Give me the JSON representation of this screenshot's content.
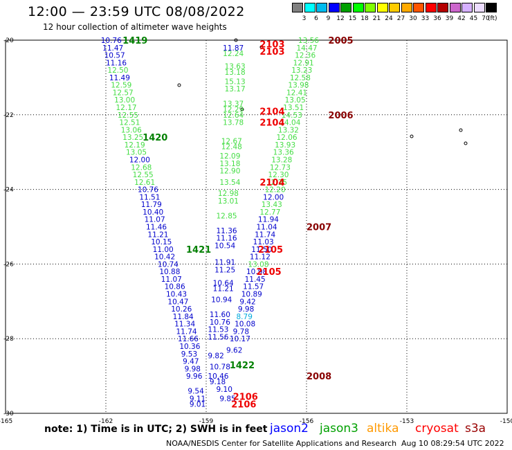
{
  "header": {
    "title": "12:00 — 23:59 UTC 08/08/2022",
    "subtitle": "12 hour collection of altimeter wave heights"
  },
  "legend": {
    "colors": [
      "#808080",
      "#00ffff",
      "#00bbee",
      "#0000ff",
      "#00a000",
      "#00ff00",
      "#80ff00",
      "#ffff00",
      "#ffcc00",
      "#ffaa00",
      "#ff5500",
      "#ff0000",
      "#b40000",
      "#cc66cc",
      "#d5b0ff",
      "#ecdcff",
      "#000000"
    ],
    "labels": [
      "3",
      "6",
      "9",
      "12",
      "15",
      "18",
      "21",
      "24",
      "27",
      "30",
      "33",
      "36",
      "39",
      "42",
      "45",
      "70"
    ],
    "unit": "(ft)"
  },
  "chart_data": {
    "type": "scatter",
    "xlim": [
      -165,
      -150
    ],
    "ylim": [
      -30,
      -20
    ],
    "x_ticks": [
      "-165",
      "-162",
      "-159",
      "-156",
      "-153",
      "-150"
    ],
    "y_ticks": [
      "-20",
      "-22",
      "-24",
      "-26",
      "-28",
      "-30"
    ],
    "grid": true,
    "tracks": [
      {
        "x": -162.15,
        "y": -20.0,
        "label": "10.76",
        "color": "#0000cc"
      },
      {
        "x": -162.1,
        "y": -20.2,
        "label": "11.47",
        "color": "#0000cc"
      },
      {
        "x": -162.05,
        "y": -20.4,
        "label": "10.57",
        "color": "#0000cc"
      },
      {
        "x": -162.0,
        "y": -20.6,
        "label": "11.16",
        "color": "#0000cc"
      },
      {
        "x": -161.95,
        "y": -20.8,
        "label": "12.50",
        "color": "#44dd44"
      },
      {
        "x": -161.9,
        "y": -21.0,
        "label": "11.49",
        "color": "#0000cc"
      },
      {
        "x": -161.85,
        "y": -21.2,
        "label": "12.59",
        "color": "#44dd44"
      },
      {
        "x": -161.8,
        "y": -21.4,
        "label": "12.57",
        "color": "#44dd44"
      },
      {
        "x": -161.75,
        "y": -21.6,
        "label": "13.00",
        "color": "#44dd44"
      },
      {
        "x": -161.7,
        "y": -21.8,
        "label": "12.17",
        "color": "#44dd44"
      },
      {
        "x": -161.65,
        "y": -22.0,
        "label": "12.55",
        "color": "#44dd44"
      },
      {
        "x": -161.6,
        "y": -22.2,
        "label": "12.51",
        "color": "#44dd44"
      },
      {
        "x": -161.55,
        "y": -22.4,
        "label": "13.06",
        "color": "#44dd44"
      },
      {
        "x": -161.5,
        "y": -22.6,
        "label": "13.25",
        "color": "#44dd44"
      },
      {
        "x": -161.45,
        "y": -22.8,
        "label": "12.19",
        "color": "#44dd44"
      },
      {
        "x": -161.4,
        "y": -23.0,
        "label": "13.05",
        "color": "#44dd44"
      },
      {
        "x": -161.3,
        "y": -23.2,
        "label": "12.00",
        "color": "#0000cc"
      },
      {
        "x": -161.25,
        "y": -23.4,
        "label": "12.68",
        "color": "#44dd44"
      },
      {
        "x": -161.2,
        "y": -23.6,
        "label": "12.55",
        "color": "#44dd44"
      },
      {
        "x": -161.15,
        "y": -23.8,
        "label": "12.61",
        "color": "#44dd44"
      },
      {
        "x": -161.05,
        "y": -24.0,
        "label": "10.76",
        "color": "#0000cc"
      },
      {
        "x": -161.0,
        "y": -24.2,
        "label": "11.51",
        "color": "#0000cc"
      },
      {
        "x": -160.95,
        "y": -24.4,
        "label": "11.79",
        "color": "#0000cc"
      },
      {
        "x": -160.9,
        "y": -24.6,
        "label": "10.40",
        "color": "#0000cc"
      },
      {
        "x": -160.85,
        "y": -24.8,
        "label": "11.07",
        "color": "#0000cc"
      },
      {
        "x": -160.8,
        "y": -25.0,
        "label": "11.46",
        "color": "#0000cc"
      },
      {
        "x": -160.75,
        "y": -25.2,
        "label": "11.21",
        "color": "#0000cc"
      },
      {
        "x": -160.65,
        "y": -25.4,
        "label": "10.15",
        "color": "#0000cc"
      },
      {
        "x": -160.6,
        "y": -25.6,
        "label": "11.00",
        "color": "#0000cc"
      },
      {
        "x": -160.55,
        "y": -25.8,
        "label": "10.42",
        "color": "#0000cc"
      },
      {
        "x": -160.45,
        "y": -26.0,
        "label": "10.74",
        "color": "#0000cc"
      },
      {
        "x": -160.4,
        "y": -26.2,
        "label": "10.88",
        "color": "#0000cc"
      },
      {
        "x": -160.35,
        "y": -26.4,
        "label": "11.07",
        "color": "#0000cc"
      },
      {
        "x": -160.25,
        "y": -26.6,
        "label": "10.86",
        "color": "#0000cc"
      },
      {
        "x": -160.2,
        "y": -26.8,
        "label": "10.43",
        "color": "#0000cc"
      },
      {
        "x": -160.15,
        "y": -27.0,
        "label": "10.47",
        "color": "#0000cc"
      },
      {
        "x": -160.05,
        "y": -27.2,
        "label": "10.26",
        "color": "#0000cc"
      },
      {
        "x": -160.0,
        "y": -27.4,
        "label": "11.84",
        "color": "#0000cc"
      },
      {
        "x": -159.95,
        "y": -27.6,
        "label": "11.34",
        "color": "#0000cc"
      },
      {
        "x": -159.9,
        "y": -27.8,
        "label": "11.74",
        "color": "#0000cc"
      },
      {
        "x": -159.85,
        "y": -28.0,
        "label": "11.66",
        "color": "#0000cc"
      },
      {
        "x": -159.8,
        "y": -28.2,
        "label": "10.36",
        "color": "#0000cc"
      },
      {
        "x": -159.75,
        "y": -28.4,
        "label": "9.53",
        "color": "#0000cc"
      },
      {
        "x": -159.7,
        "y": -28.6,
        "label": "9.47",
        "color": "#0000cc"
      },
      {
        "x": -159.65,
        "y": -28.8,
        "label": "9.98",
        "color": "#0000cc"
      },
      {
        "x": -159.6,
        "y": -29.0,
        "label": "9.96",
        "color": "#0000cc"
      },
      {
        "x": -159.55,
        "y": -29.4,
        "label": "9.54",
        "color": "#0000cc"
      },
      {
        "x": -159.5,
        "y": -29.6,
        "label": "9.11",
        "color": "#0000cc"
      },
      {
        "x": -159.5,
        "y": -29.75,
        "label": "9.01",
        "color": "#0000cc"
      },
      {
        "x": -158.5,
        "y": -20.2,
        "label": "11.87",
        "color": "#0000cc"
      },
      {
        "x": -158.5,
        "y": -20.35,
        "label": "12.24",
        "color": "#44dd44"
      },
      {
        "x": -158.45,
        "y": -20.7,
        "label": "13.63",
        "color": "#44dd44"
      },
      {
        "x": -158.45,
        "y": -20.85,
        "label": "13.18",
        "color": "#44dd44"
      },
      {
        "x": -158.45,
        "y": -21.1,
        "label": "15.13",
        "color": "#44dd44"
      },
      {
        "x": -158.45,
        "y": -21.3,
        "label": "13.17",
        "color": "#44dd44"
      },
      {
        "x": -158.5,
        "y": -21.7,
        "label": "13.37",
        "color": "#44dd44"
      },
      {
        "x": -158.5,
        "y": -21.85,
        "label": "12.29",
        "color": "#44dd44"
      },
      {
        "x": -158.5,
        "y": -22.0,
        "label": "12.64",
        "color": "#44dd44"
      },
      {
        "x": -158.5,
        "y": -22.2,
        "label": "13.78",
        "color": "#44dd44"
      },
      {
        "x": -158.55,
        "y": -22.7,
        "label": "12.67",
        "color": "#44dd44"
      },
      {
        "x": -158.55,
        "y": -22.85,
        "label": "12.48",
        "color": "#44dd44"
      },
      {
        "x": -158.6,
        "y": -23.1,
        "label": "12.09",
        "color": "#44dd44"
      },
      {
        "x": -158.6,
        "y": -23.3,
        "label": "13.18",
        "color": "#44dd44"
      },
      {
        "x": -158.6,
        "y": -23.5,
        "label": "12.90",
        "color": "#44dd44"
      },
      {
        "x": -158.6,
        "y": -23.8,
        "label": "13.54",
        "color": "#44dd44"
      },
      {
        "x": -158.65,
        "y": -24.1,
        "label": "12.98",
        "color": "#44dd44"
      },
      {
        "x": -158.65,
        "y": -24.3,
        "label": "13.01",
        "color": "#44dd44"
      },
      {
        "x": -158.7,
        "y": -24.7,
        "label": "12.85",
        "color": "#44dd44"
      },
      {
        "x": -158.7,
        "y": -25.1,
        "label": "11.36",
        "color": "#0000cc"
      },
      {
        "x": -158.7,
        "y": -25.3,
        "label": "11.16",
        "color": "#0000cc"
      },
      {
        "x": -158.75,
        "y": -25.5,
        "label": "10.54",
        "color": "#0000cc"
      },
      {
        "x": -158.75,
        "y": -25.95,
        "label": "11.91",
        "color": "#0000cc"
      },
      {
        "x": -158.75,
        "y": -26.15,
        "label": "11.25",
        "color": "#0000cc"
      },
      {
        "x": -158.8,
        "y": -26.5,
        "label": "10.64",
        "color": "#0000cc"
      },
      {
        "x": -158.8,
        "y": -26.65,
        "label": "11.21",
        "color": "#0000cc"
      },
      {
        "x": -158.85,
        "y": -26.95,
        "label": "10.94",
        "color": "#0000cc"
      },
      {
        "x": -158.9,
        "y": -27.35,
        "label": "11.60",
        "color": "#0000cc"
      },
      {
        "x": -158.9,
        "y": -27.55,
        "label": "10.76",
        "color": "#0000cc"
      },
      {
        "x": -158.95,
        "y": -27.75,
        "label": "11.53",
        "color": "#0000cc"
      },
      {
        "x": -158.95,
        "y": -27.95,
        "label": "11.56",
        "color": "#0000cc"
      },
      {
        "x": -158.95,
        "y": -28.45,
        "label": "9.82",
        "color": "#0000cc"
      },
      {
        "x": -158.9,
        "y": -28.75,
        "label": "10.78",
        "color": "#0000cc"
      },
      {
        "x": -158.95,
        "y": -29.0,
        "label": "10.46",
        "color": "#0000cc"
      },
      {
        "x": -158.9,
        "y": -29.15,
        "label": "9.18",
        "color": "#0000cc"
      },
      {
        "x": -158.7,
        "y": -29.35,
        "label": "9.10",
        "color": "#0000cc"
      },
      {
        "x": -158.6,
        "y": -29.6,
        "label": "9.85",
        "color": "#0000cc"
      },
      {
        "x": -156.25,
        "y": -20.0,
        "label": "13.56",
        "color": "#44dd44"
      },
      {
        "x": -156.3,
        "y": -20.2,
        "label": "14.47",
        "color": "#44dd44"
      },
      {
        "x": -156.35,
        "y": -20.4,
        "label": "12.36",
        "color": "#44dd44"
      },
      {
        "x": -156.4,
        "y": -20.6,
        "label": "12.91",
        "color": "#44dd44"
      },
      {
        "x": -156.45,
        "y": -20.8,
        "label": "13.23",
        "color": "#44dd44"
      },
      {
        "x": -156.5,
        "y": -21.0,
        "label": "12.58",
        "color": "#44dd44"
      },
      {
        "x": -156.55,
        "y": -21.2,
        "label": "13.98",
        "color": "#44dd44"
      },
      {
        "x": -156.6,
        "y": -21.4,
        "label": "12.41",
        "color": "#44dd44"
      },
      {
        "x": -156.65,
        "y": -21.6,
        "label": "13.05",
        "color": "#44dd44"
      },
      {
        "x": -156.7,
        "y": -21.8,
        "label": "13.51",
        "color": "#44dd44"
      },
      {
        "x": -156.75,
        "y": -22.0,
        "label": "14.53",
        "color": "#44dd44"
      },
      {
        "x": -156.8,
        "y": -22.2,
        "label": "14.04",
        "color": "#44dd44"
      },
      {
        "x": -156.85,
        "y": -22.4,
        "label": "13.32",
        "color": "#44dd44"
      },
      {
        "x": -156.9,
        "y": -22.6,
        "label": "12.06",
        "color": "#44dd44"
      },
      {
        "x": -156.95,
        "y": -22.8,
        "label": "13.93",
        "color": "#44dd44"
      },
      {
        "x": -157.0,
        "y": -23.0,
        "label": "13.36",
        "color": "#44dd44"
      },
      {
        "x": -157.05,
        "y": -23.2,
        "label": "13.28",
        "color": "#44dd44"
      },
      {
        "x": -157.1,
        "y": -23.4,
        "label": "12.73",
        "color": "#44dd44"
      },
      {
        "x": -157.15,
        "y": -23.6,
        "label": "12.30",
        "color": "#44dd44"
      },
      {
        "x": -157.2,
        "y": -23.8,
        "label": "12.25",
        "color": "#44dd44"
      },
      {
        "x": -157.25,
        "y": -24.0,
        "label": "12.20",
        "color": "#44dd44"
      },
      {
        "x": -157.3,
        "y": -24.2,
        "label": "12.00",
        "color": "#0000cc"
      },
      {
        "x": -157.35,
        "y": -24.4,
        "label": "13.43",
        "color": "#44dd44"
      },
      {
        "x": -157.4,
        "y": -24.6,
        "label": "12.77",
        "color": "#44dd44"
      },
      {
        "x": -157.45,
        "y": -24.8,
        "label": "11.94",
        "color": "#0000cc"
      },
      {
        "x": -157.5,
        "y": -25.0,
        "label": "11.04",
        "color": "#0000cc"
      },
      {
        "x": -157.55,
        "y": -25.2,
        "label": "11.74",
        "color": "#0000cc"
      },
      {
        "x": -157.6,
        "y": -25.4,
        "label": "11.03",
        "color": "#0000cc"
      },
      {
        "x": -157.65,
        "y": -25.6,
        "label": "11.50",
        "color": "#0000cc"
      },
      {
        "x": -157.7,
        "y": -25.8,
        "label": "11.12",
        "color": "#0000cc"
      },
      {
        "x": -157.75,
        "y": -26.0,
        "label": "13.08",
        "color": "#44dd44"
      },
      {
        "x": -157.8,
        "y": -26.2,
        "label": "10.98",
        "color": "#0000cc"
      },
      {
        "x": -157.85,
        "y": -26.4,
        "label": "11.45",
        "color": "#0000cc"
      },
      {
        "x": -157.9,
        "y": -26.6,
        "label": "11.57",
        "color": "#0000cc"
      },
      {
        "x": -157.95,
        "y": -26.8,
        "label": "10.89",
        "color": "#0000cc"
      },
      {
        "x": -158.0,
        "y": -27.0,
        "label": "9.42",
        "color": "#0000cc"
      },
      {
        "x": -158.05,
        "y": -27.2,
        "label": "9.98",
        "color": "#0000cc"
      },
      {
        "x": -158.1,
        "y": -27.4,
        "label": "8.79",
        "color": "#00aadd"
      },
      {
        "x": -158.15,
        "y": -27.6,
        "label": "10.08",
        "color": "#0000cc"
      },
      {
        "x": -158.2,
        "y": -27.8,
        "label": "9.78",
        "color": "#0000cc"
      },
      {
        "x": -158.3,
        "y": -28.0,
        "label": "10.17",
        "color": "#0000cc"
      },
      {
        "x": -158.4,
        "y": -28.3,
        "label": "9.62",
        "color": "#0000cc"
      }
    ],
    "pass_labels": [
      {
        "x": -161.5,
        "y": -20.0,
        "label": "1419",
        "color": "#008000"
      },
      {
        "x": -160.9,
        "y": -22.6,
        "label": "1420",
        "color": "#008000"
      },
      {
        "x": -159.6,
        "y": -25.6,
        "label": "1421",
        "color": "#008000"
      },
      {
        "x": -158.3,
        "y": -28.7,
        "label": "1422",
        "color": "#008000"
      },
      {
        "x": -157.4,
        "y": -20.1,
        "label": "2103",
        "color": "#ee0000"
      },
      {
        "x": -157.4,
        "y": -20.3,
        "label": "2103",
        "color": "#ee0000"
      },
      {
        "x": -157.4,
        "y": -21.9,
        "label": "2104",
        "color": "#ee0000"
      },
      {
        "x": -157.4,
        "y": -22.2,
        "label": "2104",
        "color": "#ee0000"
      },
      {
        "x": -157.4,
        "y": -23.8,
        "label": "2104",
        "color": "#ee0000"
      },
      {
        "x": -157.45,
        "y": -25.6,
        "label": "2105",
        "color": "#ee0000"
      },
      {
        "x": -157.5,
        "y": -26.2,
        "label": "2105",
        "color": "#ee0000"
      },
      {
        "x": -158.2,
        "y": -29.55,
        "label": "2106",
        "color": "#ee0000"
      },
      {
        "x": -158.25,
        "y": -29.75,
        "label": "2106",
        "color": "#ee0000"
      },
      {
        "x": -155.35,
        "y": -20.0,
        "label": "2005",
        "color": "#880000"
      },
      {
        "x": -155.35,
        "y": -22.0,
        "label": "2006",
        "color": "#880000"
      },
      {
        "x": -156.0,
        "y": -25.0,
        "label": "2007",
        "color": "#880000"
      },
      {
        "x": -156.0,
        "y": -29.0,
        "label": "2008",
        "color": "#880000"
      }
    ]
  },
  "footer": {
    "note": "note:  1) Time is in UTC;  2) SWH is in feet",
    "missions": [
      {
        "name": "jason2",
        "color": "#0000ff"
      },
      {
        "name": "jason3",
        "color": "#00a000"
      },
      {
        "name": "altika",
        "color": "#ff9900"
      },
      {
        "name": "cryosat",
        "color": "#ff0000"
      },
      {
        "name": "s3a",
        "color": "#990000"
      }
    ],
    "credit": "NOAA/NESDIS Center for Satellite Applications and Research",
    "timestamp": "Aug 10 08:29:54 UTC 2022"
  }
}
